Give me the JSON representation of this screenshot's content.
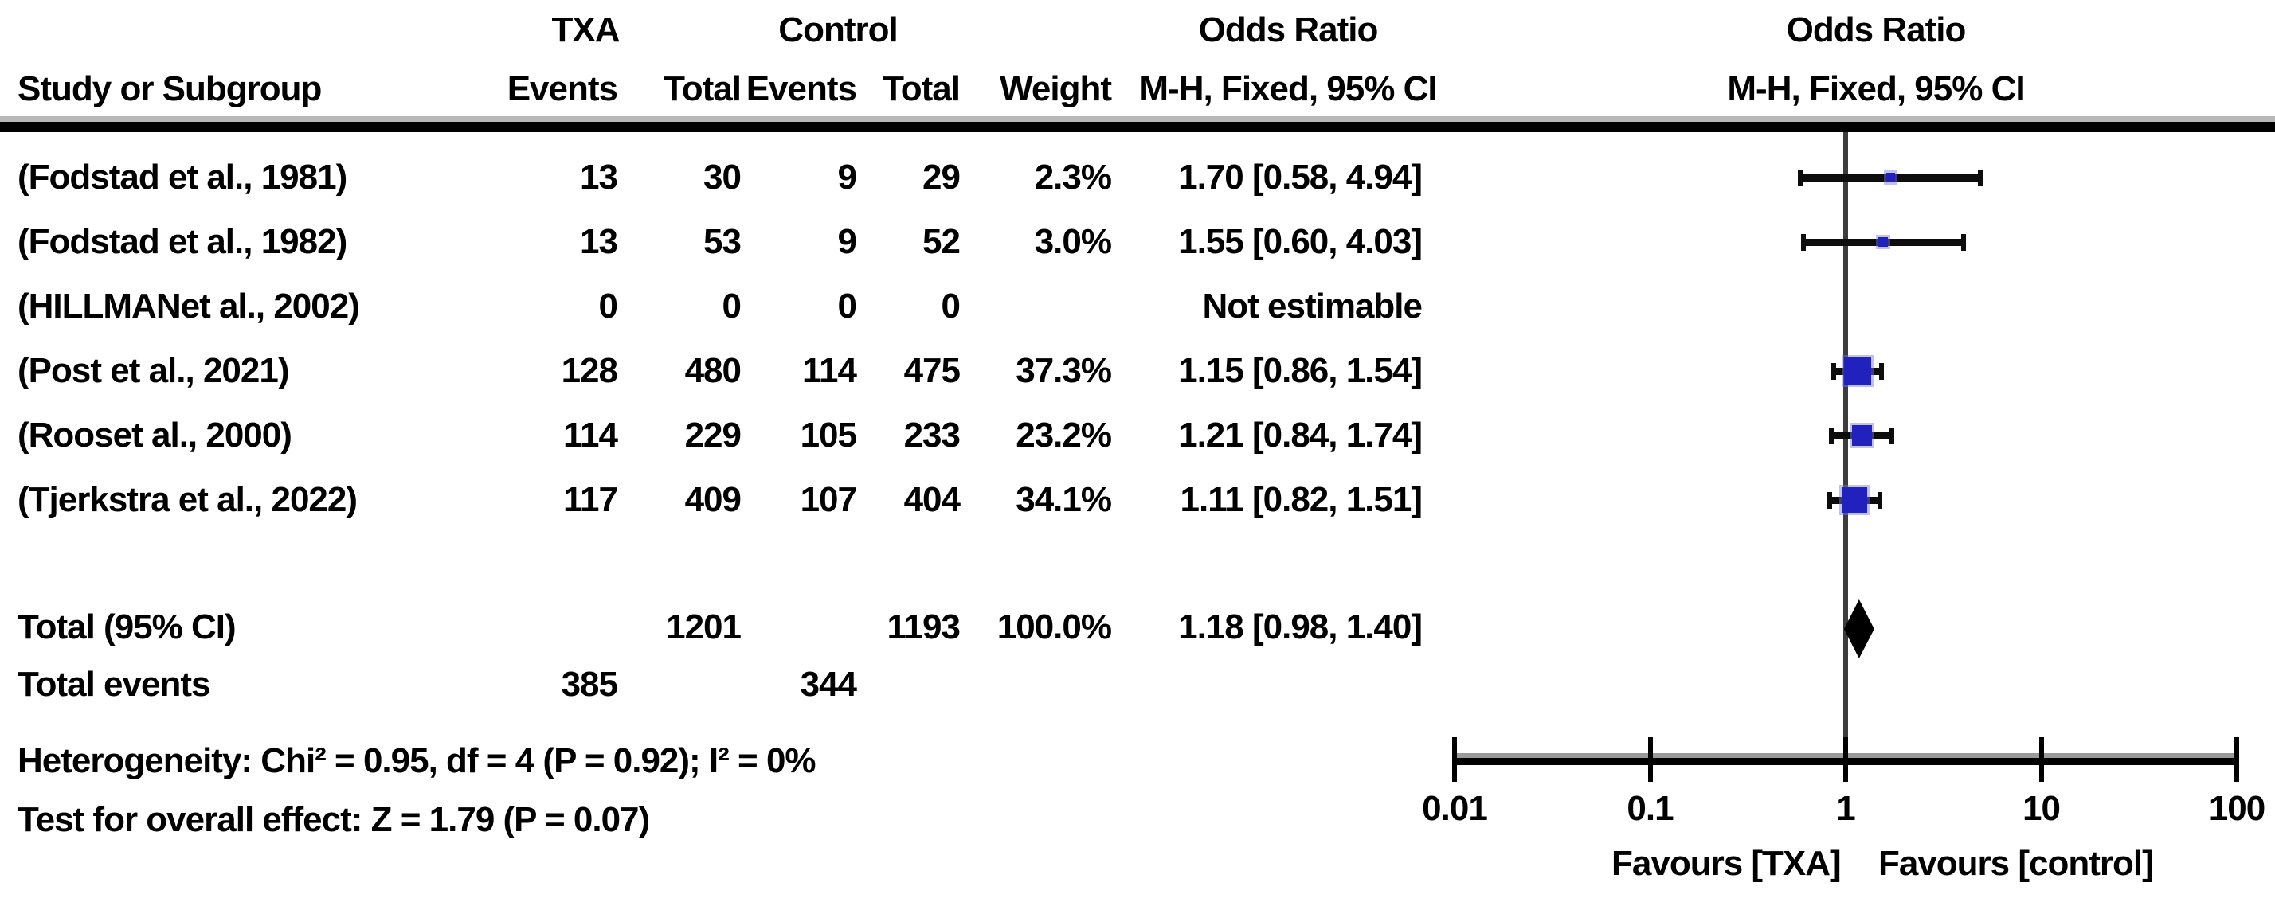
{
  "table": {
    "group_headers": {
      "txa": "TXA",
      "control": "Control",
      "odds_ratio_text": "Odds Ratio",
      "odds_ratio_plot": "Odds Ratio"
    },
    "column_headers": {
      "study": "Study or Subgroup",
      "txa_events": "Events",
      "txa_total": "Total",
      "control_events": "Events",
      "control_total": "Total",
      "weight": "Weight",
      "mh_text": "M-H, Fixed, 95% CI",
      "mh_plot": "M-H, Fixed, 95% CI"
    },
    "studies": [
      {
        "name": "(Fodstad et al., 1981)",
        "txa_events": "13",
        "txa_total": "30",
        "control_events": "9",
        "control_total": "29",
        "weight": "2.3%",
        "or_ci": "1.70 [0.58, 4.94]"
      },
      {
        "name": "(Fodstad et al., 1982)",
        "txa_events": "13",
        "txa_total": "53",
        "control_events": "9",
        "control_total": "52",
        "weight": "3.0%",
        "or_ci": "1.55 [0.60, 4.03]"
      },
      {
        "name": "(HILLMANet al., 2002)",
        "txa_events": "0",
        "txa_total": "0",
        "control_events": "0",
        "control_total": "0",
        "weight": "",
        "or_ci": "Not estimable"
      },
      {
        "name": "(Post et al., 2021)",
        "txa_events": "128",
        "txa_total": "480",
        "control_events": "114",
        "control_total": "475",
        "weight": "37.3%",
        "or_ci": "1.15 [0.86, 1.54]"
      },
      {
        "name": "(Rooset al., 2000)",
        "txa_events": "114",
        "txa_total": "229",
        "control_events": "105",
        "control_total": "233",
        "weight": "23.2%",
        "or_ci": "1.21 [0.84, 1.74]"
      },
      {
        "name": "(Tjerkstra et al., 2022)",
        "txa_events": "117",
        "txa_total": "409",
        "control_events": "107",
        "control_total": "404",
        "weight": "34.1%",
        "or_ci": "1.11 [0.82, 1.51]"
      }
    ],
    "total_row": {
      "label": "Total (95% CI)",
      "txa_total": "1201",
      "control_total": "1193",
      "weight": "100.0%",
      "or_ci": "1.18 [0.98, 1.40]"
    },
    "total_events_row": {
      "label": "Total events",
      "txa_events": "385",
      "control_events": "344"
    },
    "heterogeneity": "Heterogeneity: Chi² = 0.95, df = 4 (P = 0.92); I² = 0%",
    "overall_effect": "Test for overall effect: Z = 1.79 (P = 0.07)"
  },
  "chart_data": {
    "type": "scatter",
    "subtype": "forest-plot",
    "x_scale": "log10",
    "x_range": [
      0.01,
      100
    ],
    "x_ticks": [
      0.01,
      0.1,
      1,
      10,
      100
    ],
    "x_tick_labels": [
      "0.01",
      "0.1",
      "1",
      "10",
      "100"
    ],
    "null_line": 1,
    "points": [
      {
        "study": "(Fodstad et al., 1981)",
        "or": 1.7,
        "ci_low": 0.58,
        "ci_high": 4.94,
        "weight_pct": 2.3
      },
      {
        "study": "(Fodstad et al., 1982)",
        "or": 1.55,
        "ci_low": 0.6,
        "ci_high": 4.03,
        "weight_pct": 3.0
      },
      {
        "study": "(HILLMANet al., 2002)",
        "or": null,
        "ci_low": null,
        "ci_high": null,
        "weight_pct": null
      },
      {
        "study": "(Post et al., 2021)",
        "or": 1.15,
        "ci_low": 0.86,
        "ci_high": 1.54,
        "weight_pct": 37.3
      },
      {
        "study": "(Rooset al., 2000)",
        "or": 1.21,
        "ci_low": 0.84,
        "ci_high": 1.74,
        "weight_pct": 23.2
      },
      {
        "study": "(Tjerkstra et al., 2022)",
        "or": 1.11,
        "ci_low": 0.82,
        "ci_high": 1.51,
        "weight_pct": 34.1
      }
    ],
    "diamond": {
      "or": 1.18,
      "ci_low": 0.98,
      "ci_high": 1.4
    },
    "favours_left": "Favours [TXA]",
    "favours_right": "Favours [control]",
    "marker_color": "#2121bd",
    "diamond_color": "#000000"
  }
}
